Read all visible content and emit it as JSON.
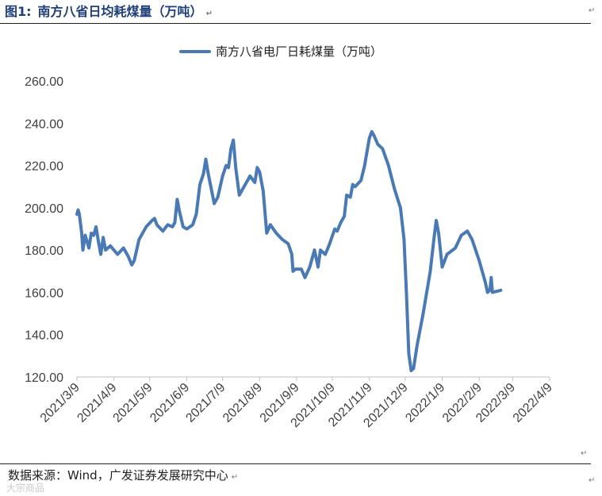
{
  "figure": {
    "number_label": "图1:",
    "title": "南方八省日均耗煤量（万吨）",
    "source": "数据来源：Wind，广发证券发展研究中心",
    "watermark": "大宗商品",
    "return_mark": "↵"
  },
  "chart_data": {
    "type": "line",
    "title": "",
    "xlabel": "",
    "ylabel": "",
    "ylim": [
      120,
      260
    ],
    "y_ticks": [
      "120.00",
      "140.00",
      "160.00",
      "180.00",
      "200.00",
      "220.00",
      "240.00",
      "260.00"
    ],
    "x_tick_labels": [
      "2021/3/9",
      "2021/4/9",
      "2021/5/9",
      "2021/6/9",
      "2021/7/9",
      "2021/8/9",
      "2021/9/9",
      "2021/10/9",
      "2021/11/9",
      "2021/12/9",
      "2022/1/9",
      "2022/2/9",
      "2022/3/9",
      "2022/4/9"
    ],
    "grid": false,
    "legend_position": "top-center",
    "series": [
      {
        "name": "南方八省电厂日耗煤量（万吨）",
        "color": "#4a7ab5",
        "points": [
          [
            "2021-03-09",
            197
          ],
          [
            "2021-03-10",
            199
          ],
          [
            "2021-03-11",
            197
          ],
          [
            "2021-03-13",
            188
          ],
          [
            "2021-03-14",
            180
          ],
          [
            "2021-03-16",
            187
          ],
          [
            "2021-03-17",
            185
          ],
          [
            "2021-03-19",
            181
          ],
          [
            "2021-03-21",
            188
          ],
          [
            "2021-03-23",
            187
          ],
          [
            "2021-03-25",
            191
          ],
          [
            "2021-03-27",
            184
          ],
          [
            "2021-03-29",
            178
          ],
          [
            "2021-03-31",
            186
          ],
          [
            "2021-04-02",
            180
          ],
          [
            "2021-04-06",
            182
          ],
          [
            "2021-04-12",
            178
          ],
          [
            "2021-04-17",
            181
          ],
          [
            "2021-04-21",
            177
          ],
          [
            "2021-04-24",
            173
          ],
          [
            "2021-04-26",
            175
          ],
          [
            "2021-04-30",
            185
          ],
          [
            "2021-05-06",
            191
          ],
          [
            "2021-05-11",
            194
          ],
          [
            "2021-05-13",
            195
          ],
          [
            "2021-05-15",
            192
          ],
          [
            "2021-05-20",
            189
          ],
          [
            "2021-05-24",
            192
          ],
          [
            "2021-05-28",
            191
          ],
          [
            "2021-05-30",
            193
          ],
          [
            "2021-06-01",
            204
          ],
          [
            "2021-06-03",
            198
          ],
          [
            "2021-06-06",
            191
          ],
          [
            "2021-06-09",
            190
          ],
          [
            "2021-06-14",
            192
          ],
          [
            "2021-06-17",
            197
          ],
          [
            "2021-06-20",
            211
          ],
          [
            "2021-06-23",
            216
          ],
          [
            "2021-06-25",
            223
          ],
          [
            "2021-06-27",
            216
          ],
          [
            "2021-07-02",
            202
          ],
          [
            "2021-07-05",
            205
          ],
          [
            "2021-07-09",
            215
          ],
          [
            "2021-07-12",
            220
          ],
          [
            "2021-07-14",
            219
          ],
          [
            "2021-07-16",
            228
          ],
          [
            "2021-07-18",
            232
          ],
          [
            "2021-07-20",
            219
          ],
          [
            "2021-07-23",
            206
          ],
          [
            "2021-07-28",
            211
          ],
          [
            "2021-08-01",
            215
          ],
          [
            "2021-08-05",
            212
          ],
          [
            "2021-08-07",
            219
          ],
          [
            "2021-08-09",
            217
          ],
          [
            "2021-08-12",
            208
          ],
          [
            "2021-08-15",
            188
          ],
          [
            "2021-08-18",
            192
          ],
          [
            "2021-08-23",
            188
          ],
          [
            "2021-08-28",
            185
          ],
          [
            "2021-09-02",
            183
          ],
          [
            "2021-09-05",
            178
          ],
          [
            "2021-09-06",
            170
          ],
          [
            "2021-09-08",
            171
          ],
          [
            "2021-09-13",
            171
          ],
          [
            "2021-09-16",
            167
          ],
          [
            "2021-09-20",
            172
          ],
          [
            "2021-09-24",
            180
          ],
          [
            "2021-09-27",
            172
          ],
          [
            "2021-09-29",
            180
          ],
          [
            "2021-10-03",
            178
          ],
          [
            "2021-10-06",
            182
          ],
          [
            "2021-10-11",
            190
          ],
          [
            "2021-10-13",
            189
          ],
          [
            "2021-10-16",
            193
          ],
          [
            "2021-10-19",
            196
          ],
          [
            "2021-10-21",
            206
          ],
          [
            "2021-10-24",
            205
          ],
          [
            "2021-10-26",
            211
          ],
          [
            "2021-10-28",
            210
          ],
          [
            "2021-11-02",
            213
          ],
          [
            "2021-11-05",
            220
          ],
          [
            "2021-11-09",
            233
          ],
          [
            "2021-11-11",
            236
          ],
          [
            "2021-11-13",
            234
          ],
          [
            "2021-11-16",
            230
          ],
          [
            "2021-11-20",
            228
          ],
          [
            "2021-11-25",
            220
          ],
          [
            "2021-11-30",
            209
          ],
          [
            "2021-12-05",
            200
          ],
          [
            "2021-12-08",
            185
          ],
          [
            "2021-12-10",
            160
          ],
          [
            "2021-12-12",
            131
          ],
          [
            "2021-12-14",
            123
          ],
          [
            "2021-12-16",
            124
          ],
          [
            "2021-12-19",
            135
          ],
          [
            "2021-12-24",
            150
          ],
          [
            "2021-12-30",
            170
          ],
          [
            "2022-01-02",
            185
          ],
          [
            "2022-01-04",
            194
          ],
          [
            "2022-01-06",
            188
          ],
          [
            "2022-01-09",
            172
          ],
          [
            "2022-01-11",
            175
          ],
          [
            "2022-01-13",
            178
          ],
          [
            "2022-01-20",
            181
          ],
          [
            "2022-01-25",
            187
          ],
          [
            "2022-01-30",
            189
          ],
          [
            "2022-02-03",
            185
          ],
          [
            "2022-02-09",
            175
          ],
          [
            "2022-02-14",
            165
          ],
          [
            "2022-02-16",
            160
          ],
          [
            "2022-02-18",
            161
          ],
          [
            "2022-02-19",
            167
          ],
          [
            "2022-02-20",
            160
          ],
          [
            "2022-02-27",
            161
          ]
        ]
      }
    ]
  }
}
